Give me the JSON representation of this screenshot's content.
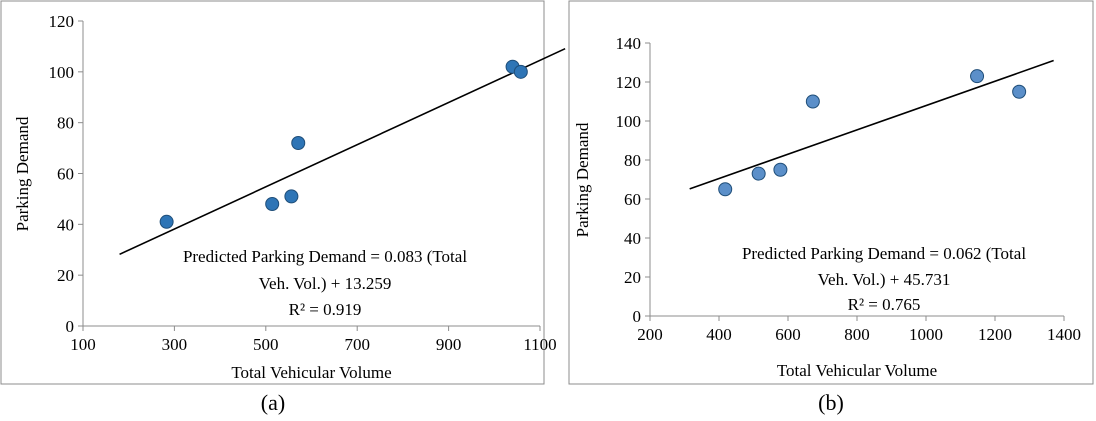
{
  "chart_data": [
    {
      "type": "scatter",
      "xlabel": "Total Vehicular Volume",
      "ylabel": "Parking Demand",
      "xlim": [
        100,
        1100
      ],
      "ylim": [
        0,
        120
      ],
      "xticks": [
        100,
        300,
        500,
        700,
        900,
        1100
      ],
      "yticks": [
        0,
        20,
        40,
        60,
        80,
        100,
        120
      ],
      "xtick_labels": [
        "100",
        "300",
        "500",
        "700",
        "900",
        "1100"
      ],
      "ytick_labels": [
        "0",
        "20",
        "40",
        "60",
        "80",
        "100",
        "120"
      ],
      "points": [
        {
          "x": 283,
          "y": 41
        },
        {
          "x": 514,
          "y": 48
        },
        {
          "x": 556,
          "y": 51
        },
        {
          "x": 571,
          "y": 72
        },
        {
          "x": 1040,
          "y": 102
        },
        {
          "x": 1058,
          "y": 100
        }
      ],
      "trendline": {
        "x0": 180,
        "y0": 28.2,
        "x1": 1155,
        "y1": 109.1
      },
      "equation_lines": [
        "Predicted Parking Demand = 0.083 (Total",
        "Veh. Vol.) + 13.259",
        "R² = 0.919"
      ],
      "caption": "(a)",
      "grid": false,
      "marker_color": "#2e75b6"
    },
    {
      "type": "scatter",
      "xlabel": "Total Vehicular Volume",
      "ylabel": "Parking Demand",
      "xlim": [
        200,
        1400
      ],
      "ylim": [
        0,
        140
      ],
      "xticks": [
        200,
        400,
        600,
        800,
        1000,
        1200,
        1400
      ],
      "yticks": [
        0,
        20,
        40,
        60,
        80,
        100,
        120,
        140
      ],
      "xtick_labels": [
        "200",
        "400",
        "600",
        "800",
        "1000",
        "1200",
        "1400"
      ],
      "ytick_labels": [
        "0",
        "20",
        "40",
        "60",
        "80",
        "100",
        "120",
        "140"
      ],
      "points": [
        {
          "x": 418,
          "y": 65
        },
        {
          "x": 515,
          "y": 73
        },
        {
          "x": 578,
          "y": 75
        },
        {
          "x": 672,
          "y": 110
        },
        {
          "x": 1148,
          "y": 123
        },
        {
          "x": 1270,
          "y": 115
        }
      ],
      "trendline": {
        "x0": 315,
        "y0": 65.2,
        "x1": 1370,
        "y1": 131.0
      },
      "equation_lines": [
        "Predicted Parking Demand = 0.062 (Total",
        "Veh. Vol.) + 45.731",
        "R² = 0.765"
      ],
      "caption": "(b)",
      "grid": false,
      "marker_color": "#5b8fc9"
    }
  ]
}
